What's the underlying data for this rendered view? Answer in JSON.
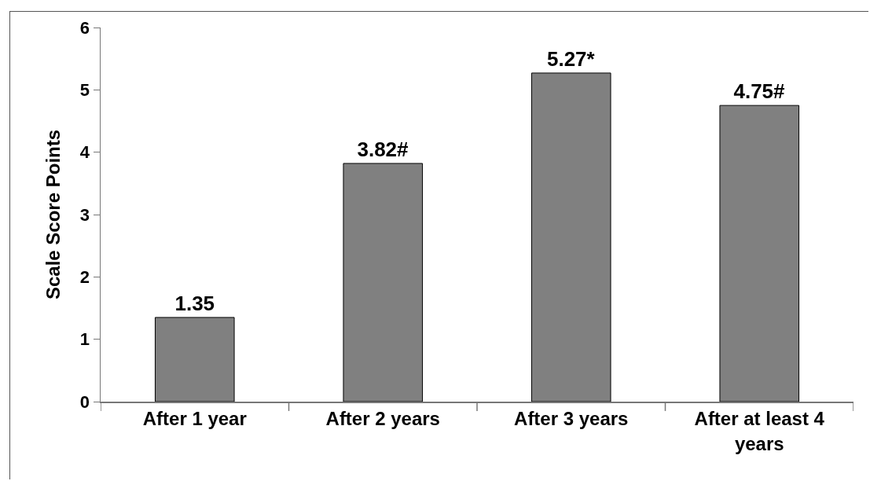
{
  "chart_data": {
    "type": "bar",
    "categories": [
      "After 1 year",
      "After 2 years",
      "After 3 years",
      "After at least 4 years"
    ],
    "values": [
      1.35,
      3.82,
      5.27,
      4.75
    ],
    "value_labels": [
      "1.35",
      "3.82#",
      "5.27*",
      "4.75#"
    ],
    "color": "#808080",
    "ylabel": "Scale Score Points",
    "ylim": [
      0,
      6
    ],
    "yticks": [
      0,
      1,
      2,
      3,
      4,
      5,
      6
    ]
  }
}
